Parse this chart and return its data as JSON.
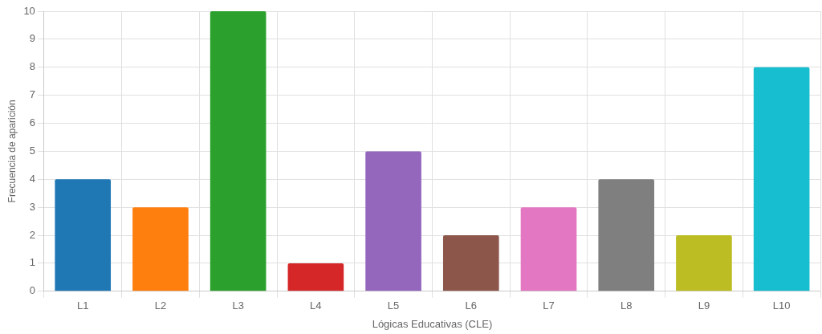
{
  "chart_data": {
    "type": "bar",
    "xlabel": "Lógicas Educativas (CLE)",
    "ylabel": "Frecuencia de aparición",
    "categories": [
      "L1",
      "L2",
      "L3",
      "L4",
      "L5",
      "L6",
      "L7",
      "L8",
      "L9",
      "L10"
    ],
    "values": [
      4,
      3,
      10,
      1,
      5,
      2,
      3,
      4,
      2,
      8
    ],
    "colors": [
      "#1f77b4",
      "#ff7f0e",
      "#2ca02c",
      "#d62728",
      "#9467bd",
      "#8c564b",
      "#e377c2",
      "#7f7f7f",
      "#bcbd22",
      "#17becf"
    ],
    "ylim": [
      0,
      10
    ],
    "yticks": [
      0,
      1,
      2,
      3,
      4,
      5,
      6,
      7,
      8,
      9,
      10
    ],
    "grid": true,
    "legend": false
  }
}
